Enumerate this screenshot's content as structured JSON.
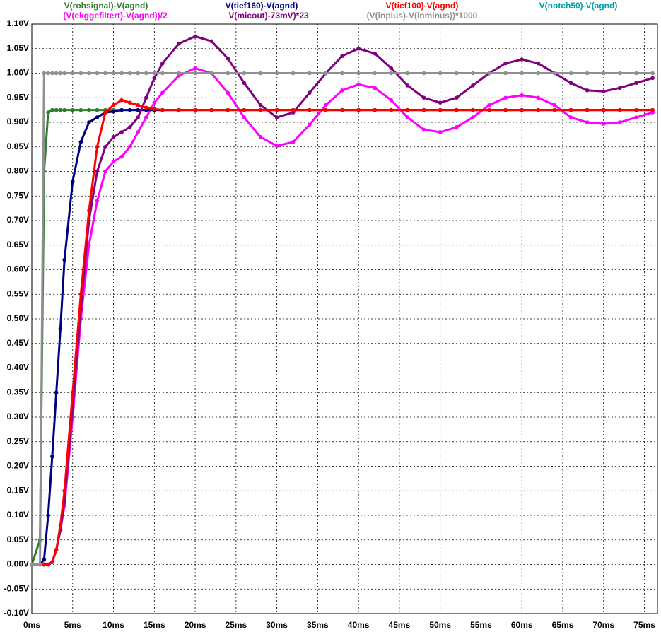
{
  "chart_data": {
    "type": "line",
    "x": [
      0,
      1,
      1.5,
      2,
      2.5,
      3,
      3.5,
      4,
      5,
      6,
      7,
      8,
      9,
      10,
      11,
      12,
      13,
      14,
      15,
      16,
      18,
      20,
      22,
      24,
      26,
      28,
      30,
      32,
      34,
      36,
      38,
      40,
      42,
      44,
      46,
      48,
      50,
      52,
      54,
      56,
      58,
      60,
      62,
      64,
      66,
      68,
      70,
      72,
      74,
      76
    ],
    "series": [
      {
        "name": "V(rohsignal)-V(agnd)",
        "color": "#2e7d2e",
        "values": [
          0,
          0.05,
          0.8,
          0.92,
          0.925,
          0.925,
          0.925,
          0.925,
          0.925,
          0.925,
          0.925,
          0.925,
          0.925,
          0.925,
          0.925,
          0.925,
          0.925,
          0.925,
          0.925,
          0.925,
          0.925,
          0.925,
          0.925,
          0.925,
          0.925,
          0.925,
          0.925,
          0.925,
          0.925,
          0.925,
          0.925,
          0.925,
          0.925,
          0.925,
          0.925,
          0.925,
          0.925,
          0.925,
          0.925,
          0.925,
          0.925,
          0.925,
          0.925,
          0.925,
          0.925,
          0.925,
          0.925,
          0.925,
          0.925,
          0.925
        ]
      },
      {
        "name": "(V(ekggefiltert)-V(agnd))/2",
        "color": "#ff00ff",
        "values": [
          0,
          0,
          0,
          0,
          0.005,
          0.03,
          0.07,
          0.12,
          0.3,
          0.5,
          0.65,
          0.74,
          0.8,
          0.82,
          0.83,
          0.85,
          0.88,
          0.91,
          0.94,
          0.96,
          0.995,
          1.01,
          1.0,
          0.96,
          0.91,
          0.87,
          0.852,
          0.86,
          0.895,
          0.935,
          0.965,
          0.977,
          0.97,
          0.945,
          0.91,
          0.885,
          0.88,
          0.89,
          0.91,
          0.935,
          0.95,
          0.955,
          0.95,
          0.935,
          0.91,
          0.9,
          0.897,
          0.9,
          0.91,
          0.92
        ]
      },
      {
        "name": "V(tief160)-V(agnd)",
        "color": "#000080",
        "values": [
          0,
          0,
          0.01,
          0.1,
          0.22,
          0.35,
          0.48,
          0.62,
          0.78,
          0.86,
          0.9,
          0.91,
          0.92,
          0.922,
          0.925,
          0.925,
          0.925,
          0.925,
          0.925,
          0.925,
          0.925,
          0.925,
          0.925,
          0.925,
          0.925,
          0.925,
          0.925,
          0.925,
          0.925,
          0.925,
          0.925,
          0.925,
          0.925,
          0.925,
          0.925,
          0.925,
          0.925,
          0.925,
          0.925,
          0.925,
          0.925,
          0.925,
          0.925,
          0.925,
          0.925,
          0.925,
          0.925,
          0.925,
          0.925,
          0.925
        ]
      },
      {
        "name": "V(micout)-73mV)*23",
        "color": "#800080",
        "values": [
          0,
          0,
          0,
          0,
          0.005,
          0.03,
          0.07,
          0.13,
          0.32,
          0.52,
          0.7,
          0.8,
          0.85,
          0.87,
          0.88,
          0.89,
          0.91,
          0.95,
          0.99,
          1.02,
          1.06,
          1.075,
          1.065,
          1.03,
          0.98,
          0.935,
          0.91,
          0.92,
          0.96,
          1.0,
          1.035,
          1.05,
          1.04,
          1.01,
          0.975,
          0.95,
          0.94,
          0.95,
          0.975,
          1.0,
          1.02,
          1.028,
          1.02,
          1.0,
          0.98,
          0.965,
          0.963,
          0.97,
          0.98,
          0.99
        ]
      },
      {
        "name": "V(tief100)-V(agnd)",
        "color": "#ff0000",
        "values": [
          0,
          0,
          0,
          0,
          0.005,
          0.03,
          0.08,
          0.15,
          0.35,
          0.55,
          0.72,
          0.85,
          0.92,
          0.935,
          0.945,
          0.94,
          0.935,
          0.93,
          0.927,
          0.925,
          0.925,
          0.925,
          0.925,
          0.925,
          0.925,
          0.925,
          0.925,
          0.925,
          0.925,
          0.925,
          0.925,
          0.925,
          0.925,
          0.925,
          0.925,
          0.925,
          0.925,
          0.925,
          0.925,
          0.925,
          0.925,
          0.925,
          0.925,
          0.925,
          0.925,
          0.925,
          0.925,
          0.925,
          0.925,
          0.925
        ]
      },
      {
        "name": "(V(inplus)-V(inminus))*1000",
        "color": "#909090",
        "values": [
          0,
          0,
          1.0,
          1.0,
          1.0,
          1.0,
          1.0,
          1.0,
          1.0,
          1.0,
          1.0,
          1.0,
          1.0,
          1.0,
          1.0,
          1.0,
          1.0,
          1.0,
          1.0,
          1.0,
          1.0,
          1.0,
          1.0,
          1.0,
          1.0,
          1.0,
          1.0,
          1.0,
          1.0,
          1.0,
          1.0,
          1.0,
          1.0,
          1.0,
          1.0,
          1.0,
          1.0,
          1.0,
          1.0,
          1.0,
          1.0,
          1.0,
          1.0,
          1.0,
          1.0,
          1.0,
          1.0,
          1.0,
          1.0,
          1.0
        ]
      },
      {
        "name": "V(notch50)-V(agnd)",
        "color": "#00a0a0",
        "values": [
          null,
          null,
          null,
          null,
          null,
          null,
          null,
          null,
          null,
          null,
          null,
          null,
          null,
          null,
          null,
          null,
          null,
          null,
          null,
          null,
          null,
          null,
          null,
          null,
          null,
          null,
          null,
          null,
          null,
          null,
          null,
          null,
          null,
          null,
          null,
          null,
          null,
          null,
          null,
          null,
          null,
          null,
          null,
          null,
          null,
          null,
          null,
          null,
          null,
          null
        ]
      }
    ],
    "xlim": [
      0,
      76.6
    ],
    "xticks": [
      {
        "value": 0,
        "label": "0ms"
      },
      {
        "value": 5,
        "label": "5ms"
      },
      {
        "value": 10,
        "label": "10ms"
      },
      {
        "value": 15,
        "label": "15ms"
      },
      {
        "value": 20,
        "label": "20ms"
      },
      {
        "value": 25,
        "label": "25ms"
      },
      {
        "value": 30,
        "label": "30ms"
      },
      {
        "value": 35,
        "label": "35ms"
      },
      {
        "value": 40,
        "label": "40ms"
      },
      {
        "value": 45,
        "label": "45ms"
      },
      {
        "value": 50,
        "label": "50ms"
      },
      {
        "value": 55,
        "label": "55ms"
      },
      {
        "value": 60,
        "label": "60ms"
      },
      {
        "value": 65,
        "label": "65ms"
      },
      {
        "value": 70,
        "label": "70ms"
      },
      {
        "value": 75,
        "label": "75ms"
      }
    ],
    "ylim": [
      -0.1,
      1.1
    ],
    "yticks": [
      {
        "value": -0.1,
        "label": "-0.10V"
      },
      {
        "value": -0.05,
        "label": "-0.05V"
      },
      {
        "value": 0,
        "label": "0.00V"
      },
      {
        "value": 0.05,
        "label": "0.05V"
      },
      {
        "value": 0.1,
        "label": "0.10V"
      },
      {
        "value": 0.15,
        "label": "0.15V"
      },
      {
        "value": 0.2,
        "label": "0.20V"
      },
      {
        "value": 0.25,
        "label": "0.25V"
      },
      {
        "value": 0.3,
        "label": "0.30V"
      },
      {
        "value": 0.35,
        "label": "0.35V"
      },
      {
        "value": 0.4,
        "label": "0.40V"
      },
      {
        "value": 0.45,
        "label": "0.45V"
      },
      {
        "value": 0.5,
        "label": "0.50V"
      },
      {
        "value": 0.55,
        "label": "0.55V"
      },
      {
        "value": 0.6,
        "label": "0.60V"
      },
      {
        "value": 0.65,
        "label": "0.65V"
      },
      {
        "value": 0.7,
        "label": "0.70V"
      },
      {
        "value": 0.75,
        "label": "0.75V"
      },
      {
        "value": 0.8,
        "label": "0.80V"
      },
      {
        "value": 0.85,
        "label": "0.85V"
      },
      {
        "value": 0.9,
        "label": "0.90V"
      },
      {
        "value": 0.95,
        "label": "0.95V"
      },
      {
        "value": 1.0,
        "label": "1.00V"
      },
      {
        "value": 1.05,
        "label": "1.05V"
      },
      {
        "value": 1.1,
        "label": "1.10V"
      }
    ],
    "grid": true
  }
}
